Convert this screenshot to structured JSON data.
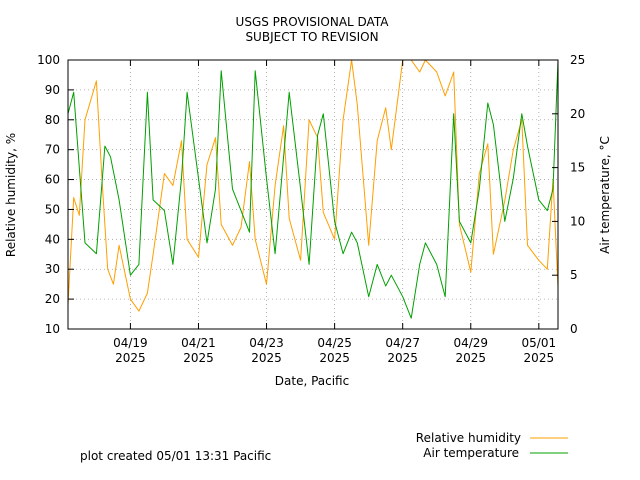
{
  "chart_data": {
    "type": "line",
    "title": [
      "USGS PROVISIONAL DATA",
      "SUBJECT TO REVISION"
    ],
    "xlabel": "Date, Pacific",
    "ylabel": "Relative humidity, %",
    "y2label": "Air temperature, °C",
    "xlim": [
      "2025-04-17T04:00",
      "2025-05-01T13:31"
    ],
    "ylim": [
      10,
      100
    ],
    "y2lim": [
      0,
      25
    ],
    "yticks": [
      10,
      20,
      30,
      40,
      50,
      60,
      70,
      80,
      90,
      100
    ],
    "y2ticks": [
      0,
      5,
      10,
      15,
      20,
      25
    ],
    "xticks": [
      {
        "date": "2025-04-19",
        "label": [
          "04/19",
          "2025"
        ]
      },
      {
        "date": "2025-04-21",
        "label": [
          "04/21",
          "2025"
        ]
      },
      {
        "date": "2025-04-23",
        "label": [
          "04/23",
          "2025"
        ]
      },
      {
        "date": "2025-04-25",
        "label": [
          "04/25",
          "2025"
        ]
      },
      {
        "date": "2025-04-27",
        "label": [
          "04/27",
          "2025"
        ]
      },
      {
        "date": "2025-04-29",
        "label": [
          "04/29",
          "2025"
        ]
      },
      {
        "date": "2025-05-01",
        "label": [
          "05/01",
          "2025"
        ]
      }
    ],
    "grid": true,
    "legend_position": "bottom-right",
    "series": [
      {
        "name": "Relative humidity",
        "axis": "left",
        "color": "#ff9f00",
        "x": [
          "2025-04-17T04:00",
          "2025-04-17T08:00",
          "2025-04-17T12:00",
          "2025-04-17T16:00",
          "2025-04-18T00:00",
          "2025-04-18T04:00",
          "2025-04-18T08:00",
          "2025-04-18T12:00",
          "2025-04-18T16:00",
          "2025-04-19T00:00",
          "2025-04-19T06:00",
          "2025-04-19T12:00",
          "2025-04-19T16:00",
          "2025-04-20T00:00",
          "2025-04-20T06:00",
          "2025-04-20T12:00",
          "2025-04-20T16:00",
          "2025-04-21T00:00",
          "2025-04-21T06:00",
          "2025-04-21T12:00",
          "2025-04-21T16:00",
          "2025-04-22T00:00",
          "2025-04-22T06:00",
          "2025-04-22T12:00",
          "2025-04-22T16:00",
          "2025-04-23T00:00",
          "2025-04-23T06:00",
          "2025-04-23T12:00",
          "2025-04-23T16:00",
          "2025-04-24T00:00",
          "2025-04-24T06:00",
          "2025-04-24T12:00",
          "2025-04-24T16:00",
          "2025-04-25T00:00",
          "2025-04-25T06:00",
          "2025-04-25T12:00",
          "2025-04-25T16:00",
          "2025-04-26T00:00",
          "2025-04-26T06:00",
          "2025-04-26T12:00",
          "2025-04-26T16:00",
          "2025-04-27T00:00",
          "2025-04-27T06:00",
          "2025-04-27T12:00",
          "2025-04-27T16:00",
          "2025-04-28T00:00",
          "2025-04-28T06:00",
          "2025-04-28T12:00",
          "2025-04-28T16:00",
          "2025-04-29T00:00",
          "2025-04-29T06:00",
          "2025-04-29T12:00",
          "2025-04-29T16:00",
          "2025-04-30T00:00",
          "2025-04-30T06:00",
          "2025-04-30T12:00",
          "2025-04-30T16:00",
          "2025-05-01T00:00",
          "2025-05-01T06:00",
          "2025-05-01T10:00",
          "2025-05-01T13:31"
        ],
        "values": [
          18,
          54,
          48,
          80,
          93,
          60,
          30,
          25,
          38,
          20,
          16,
          22,
          35,
          62,
          58,
          73,
          40,
          34,
          65,
          74,
          45,
          38,
          44,
          66,
          40,
          25,
          58,
          78,
          47,
          33,
          80,
          74,
          49,
          40,
          80,
          100,
          85,
          38,
          73,
          84,
          70,
          100,
          100,
          96,
          100,
          96,
          88,
          96,
          45,
          29,
          62,
          72,
          35,
          53,
          70,
          80,
          38,
          33,
          30,
          60,
          24
        ]
      },
      {
        "name": "Air temperature",
        "axis": "right",
        "color": "#00a000",
        "x": [
          "2025-04-17T04:00",
          "2025-04-17T08:00",
          "2025-04-17T12:00",
          "2025-04-17T16:00",
          "2025-04-18T00:00",
          "2025-04-18T06:00",
          "2025-04-18T10:00",
          "2025-04-18T16:00",
          "2025-04-19T00:00",
          "2025-04-19T06:00",
          "2025-04-19T12:00",
          "2025-04-19T16:00",
          "2025-04-20T00:00",
          "2025-04-20T06:00",
          "2025-04-20T12:00",
          "2025-04-20T16:00",
          "2025-04-21T00:00",
          "2025-04-21T06:00",
          "2025-04-21T12:00",
          "2025-04-21T16:00",
          "2025-04-22T00:00",
          "2025-04-22T06:00",
          "2025-04-22T12:00",
          "2025-04-22T16:00",
          "2025-04-23T00:00",
          "2025-04-23T06:00",
          "2025-04-23T12:00",
          "2025-04-23T16:00",
          "2025-04-24T00:00",
          "2025-04-24T06:00",
          "2025-04-24T12:00",
          "2025-04-24T16:00",
          "2025-04-25T00:00",
          "2025-04-25T06:00",
          "2025-04-25T12:00",
          "2025-04-25T16:00",
          "2025-04-26T00:00",
          "2025-04-26T06:00",
          "2025-04-26T12:00",
          "2025-04-26T16:00",
          "2025-04-27T00:00",
          "2025-04-27T06:00",
          "2025-04-27T12:00",
          "2025-04-27T16:00",
          "2025-04-28T00:00",
          "2025-04-28T06:00",
          "2025-04-28T12:00",
          "2025-04-28T16:00",
          "2025-04-29T00:00",
          "2025-04-29T06:00",
          "2025-04-29T12:00",
          "2025-04-29T16:00",
          "2025-04-30T00:00",
          "2025-04-30T06:00",
          "2025-04-30T12:00",
          "2025-04-30T16:00",
          "2025-05-01T00:00",
          "2025-05-01T06:00",
          "2025-05-01T10:00",
          "2025-05-01T13:31"
        ],
        "values": [
          20,
          22,
          15,
          8,
          7,
          17,
          16,
          12,
          5,
          6,
          22,
          12,
          11,
          6,
          14,
          22,
          14,
          8,
          13,
          24,
          13,
          11,
          9,
          24,
          14,
          7,
          16,
          22,
          13,
          6,
          18,
          20,
          10,
          7,
          9,
          8,
          3,
          6,
          4,
          5,
          3,
          1,
          6,
          8,
          6,
          3,
          20,
          10,
          8,
          13,
          21,
          19,
          10,
          14,
          20,
          17,
          12,
          11,
          13,
          25
        ]
      }
    ]
  },
  "footer": {
    "created": "plot created 05/01 13:31 Pacific"
  }
}
